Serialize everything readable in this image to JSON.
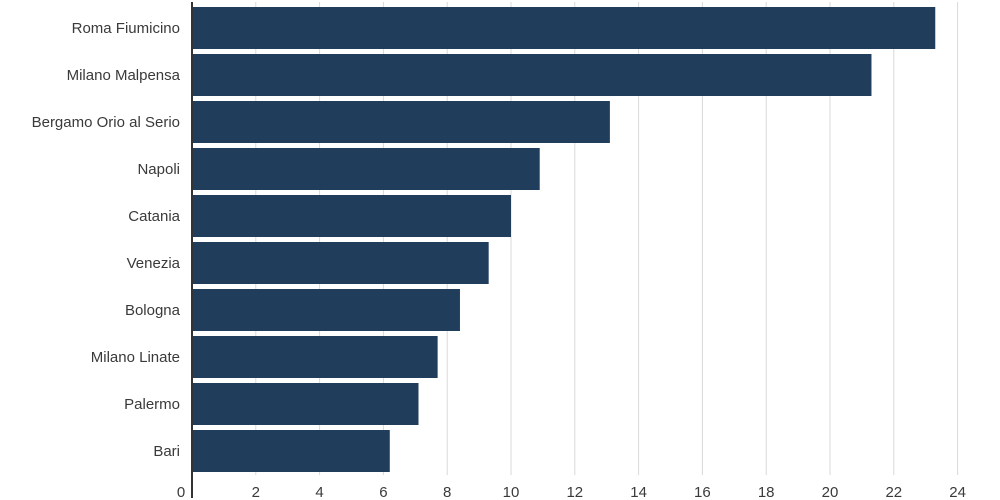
{
  "chart_data": {
    "type": "bar",
    "orientation": "horizontal",
    "categories": [
      "Roma Fiumicino",
      "Milano Malpensa",
      "Bergamo Orio al Serio",
      "Napoli",
      "Catania",
      "Venezia",
      "Bologna",
      "Milano Linate",
      "Palermo",
      "Bari"
    ],
    "values": [
      23.3,
      21.3,
      13.1,
      10.9,
      10.0,
      9.3,
      8.4,
      7.7,
      7.1,
      6.2
    ],
    "xlim": [
      0,
      25
    ],
    "xticks": [
      0,
      2,
      4,
      6,
      8,
      10,
      12,
      14,
      16,
      18,
      20,
      22,
      24
    ],
    "grid": true,
    "bar_color": "#213d5c",
    "title": "",
    "xlabel": "",
    "ylabel": ""
  }
}
